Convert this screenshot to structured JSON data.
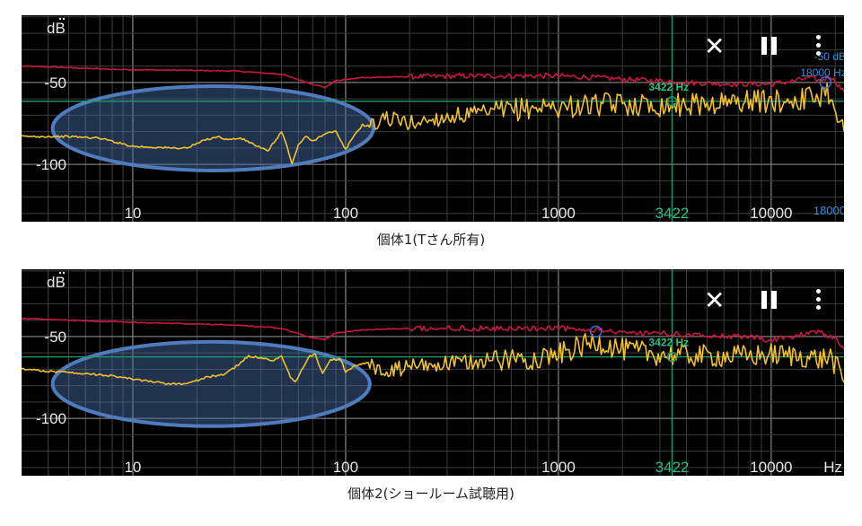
{
  "chart_data": [
    {
      "type": "line",
      "caption": "個体1(Tさん所有)",
      "y_unit_label": "dB",
      "x_unit_label": "Hz",
      "x_scale": "log",
      "xlim": [
        3,
        22000
      ],
      "ylim": [
        -135,
        -9
      ],
      "x_tick_labels": [
        {
          "value": 10,
          "label": "10"
        },
        {
          "value": 100,
          "label": "100"
        },
        {
          "value": 1000,
          "label": "1000"
        },
        {
          "value": 10000,
          "label": "10000"
        }
      ],
      "y_tick_labels": [
        {
          "value": -50,
          "label": "-50"
        },
        {
          "value": -100,
          "label": "-100"
        }
      ],
      "cursor": {
        "freq": 3422,
        "level": -61.5,
        "freq_label": "3422",
        "readout": "3422 Hz"
      },
      "marker": {
        "freq": 18000,
        "level": -50,
        "level_readout": "-50 dB",
        "freq_readout": "18000 Hz",
        "freq_axis_label": "18000"
      },
      "highlight_ellipse": {
        "from_freq": 4.2,
        "to_freq": 135,
        "center_level": -78
      },
      "series": [
        {
          "color": "#c8173f",
          "role": "peak-hold",
          "points": [
            [
              3,
              -40
            ],
            [
              5,
              -41
            ],
            [
              8,
              -42
            ],
            [
              15,
              -42.5
            ],
            [
              30,
              -43
            ],
            [
              50,
              -45
            ],
            [
              70,
              -51
            ],
            [
              80,
              -53
            ],
            [
              90,
              -49
            ],
            [
              120,
              -47
            ],
            [
              200,
              -46.5
            ],
            [
              400,
              -46
            ],
            [
              700,
              -46
            ],
            [
              1000,
              -46
            ],
            [
              1500,
              -47
            ],
            [
              2000,
              -48
            ],
            [
              3000,
              -49
            ],
            [
              4000,
              -50
            ],
            [
              5000,
              -50.5
            ],
            [
              7000,
              -51
            ],
            [
              10000,
              -51
            ],
            [
              13000,
              -49
            ],
            [
              15000,
              -47
            ],
            [
              17000,
              -49
            ],
            [
              19000,
              -46
            ],
            [
              20500,
              -51
            ],
            [
              22000,
              -56
            ]
          ]
        },
        {
          "color": "#f1c12a",
          "role": "spectrum",
          "points": [
            [
              3,
              -83
            ],
            [
              5,
              -83
            ],
            [
              7,
              -84
            ],
            [
              10,
              -89
            ],
            [
              15,
              -90
            ],
            [
              18,
              -90
            ],
            [
              22,
              -85
            ],
            [
              25,
              -83
            ],
            [
              28,
              -85
            ],
            [
              32,
              -84
            ],
            [
              36,
              -87
            ],
            [
              40,
              -90
            ],
            [
              43,
              -92
            ],
            [
              47,
              -85
            ],
            [
              50,
              -80
            ],
            [
              53,
              -89
            ],
            [
              56,
              -100
            ],
            [
              60,
              -88
            ],
            [
              65,
              -83
            ],
            [
              70,
              -86
            ],
            [
              80,
              -81
            ],
            [
              90,
              -80
            ],
            [
              95,
              -86
            ],
            [
              100,
              -91
            ],
            [
              110,
              -82
            ],
            [
              120,
              -76
            ],
            [
              135,
              -77
            ],
            [
              150,
              -71
            ],
            [
              200,
              -75
            ],
            [
              300,
              -71
            ],
            [
              500,
              -68
            ],
            [
              800,
              -65
            ],
            [
              1000,
              -65
            ],
            [
              2000,
              -63
            ],
            [
              3000,
              -64
            ],
            [
              5000,
              -63
            ],
            [
              8000,
              -61
            ],
            [
              10000,
              -62
            ],
            [
              14000,
              -60
            ],
            [
              17000,
              -58
            ],
            [
              18000,
              -54
            ],
            [
              19000,
              -58
            ],
            [
              20500,
              -68
            ],
            [
              22000,
              -80
            ]
          ]
        }
      ]
    },
    {
      "type": "line",
      "caption": "個体2(ショールーム試聴用)",
      "y_unit_label": "dB",
      "x_unit_label": "Hz",
      "x_scale": "log",
      "xlim": [
        3,
        22000
      ],
      "ylim": [
        -135,
        -9
      ],
      "x_tick_labels": [
        {
          "value": 10,
          "label": "10"
        },
        {
          "value": 100,
          "label": "100"
        },
        {
          "value": 1000,
          "label": "1000"
        },
        {
          "value": 10000,
          "label": "10000"
        }
      ],
      "y_tick_labels": [
        {
          "value": -50,
          "label": "-50"
        },
        {
          "value": -100,
          "label": "-100"
        }
      ],
      "cursor": {
        "freq": 3422,
        "level": -62.5,
        "freq_label": "3422",
        "readout": "3422 Hz"
      },
      "marker": {
        "freq": 1500,
        "level": -47
      },
      "highlight_ellipse": {
        "from_freq": 4.2,
        "to_freq": 130,
        "center_level": -79
      },
      "series": [
        {
          "color": "#c8173f",
          "role": "peak-hold",
          "points": [
            [
              3,
              -39
            ],
            [
              5,
              -40
            ],
            [
              8,
              -41
            ],
            [
              15,
              -42
            ],
            [
              30,
              -43
            ],
            [
              50,
              -45
            ],
            [
              70,
              -51
            ],
            [
              80,
              -52
            ],
            [
              90,
              -48
            ],
            [
              120,
              -46
            ],
            [
              200,
              -45
            ],
            [
              400,
              -45
            ],
            [
              700,
              -45
            ],
            [
              1000,
              -45
            ],
            [
              1500,
              -46
            ],
            [
              2000,
              -48
            ],
            [
              3000,
              -48
            ],
            [
              4000,
              -49
            ],
            [
              6000,
              -50
            ],
            [
              8000,
              -50.5
            ],
            [
              10000,
              -52
            ],
            [
              13000,
              -50
            ],
            [
              15000,
              -48
            ],
            [
              17000,
              -47
            ],
            [
              19000,
              -50
            ],
            [
              20500,
              -52
            ],
            [
              22000,
              -58
            ]
          ]
        },
        {
          "color": "#f1c12a",
          "role": "spectrum",
          "points": [
            [
              3,
              -70
            ],
            [
              5,
              -72
            ],
            [
              8,
              -74
            ],
            [
              10,
              -76
            ],
            [
              15,
              -79
            ],
            [
              18,
              -79
            ],
            [
              22,
              -75
            ],
            [
              27,
              -73
            ],
            [
              30,
              -69
            ],
            [
              35,
              -62
            ],
            [
              40,
              -63
            ],
            [
              45,
              -65
            ],
            [
              50,
              -62
            ],
            [
              55,
              -75
            ],
            [
              58,
              -78
            ],
            [
              62,
              -71
            ],
            [
              68,
              -62
            ],
            [
              72,
              -61
            ],
            [
              78,
              -73
            ],
            [
              85,
              -64
            ],
            [
              95,
              -64
            ],
            [
              100,
              -72
            ],
            [
              110,
              -68
            ],
            [
              130,
              -66
            ],
            [
              150,
              -73
            ],
            [
              200,
              -68
            ],
            [
              300,
              -67
            ],
            [
              500,
              -64
            ],
            [
              800,
              -63
            ],
            [
              1000,
              -61
            ],
            [
              1500,
              -53
            ],
            [
              2000,
              -58
            ],
            [
              3000,
              -61
            ],
            [
              5000,
              -62
            ],
            [
              8000,
              -62
            ],
            [
              10000,
              -61
            ],
            [
              14000,
              -62
            ],
            [
              17000,
              -64
            ],
            [
              19000,
              -62
            ],
            [
              20500,
              -70
            ],
            [
              22000,
              -78
            ]
          ]
        }
      ]
    }
  ]
}
